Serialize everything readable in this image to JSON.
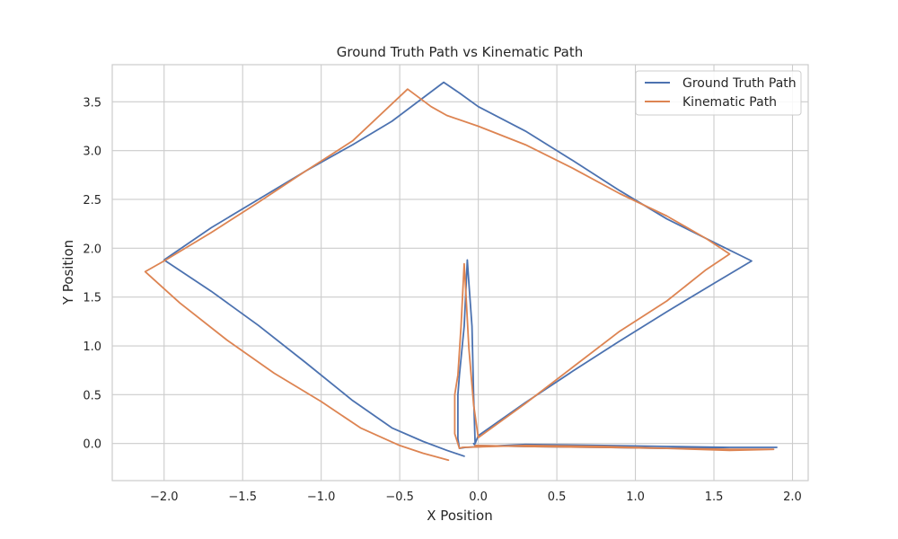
{
  "chart_data": {
    "type": "line",
    "title": "Ground Truth Path vs Kinematic Path",
    "xlabel": "X Position",
    "ylabel": "Y Position",
    "xlim": [
      -2.33,
      2.1
    ],
    "ylim": [
      -0.38,
      3.88
    ],
    "xticks": [
      -2.0,
      -1.5,
      -1.0,
      -0.5,
      0.0,
      0.5,
      1.0,
      1.5,
      2.0
    ],
    "xtick_labels": [
      "−2.0",
      "−1.5",
      "−1.0",
      "−0.5",
      "0.0",
      "0.5",
      "1.0",
      "1.5",
      "2.0"
    ],
    "yticks": [
      0.0,
      0.5,
      1.0,
      1.5,
      2.0,
      2.5,
      3.0,
      3.5
    ],
    "ytick_labels": [
      "0.0",
      "0.5",
      "1.0",
      "1.5",
      "2.0",
      "2.5",
      "3.0",
      "3.5"
    ],
    "grid": true,
    "legend_position": "top-right",
    "series": [
      {
        "name": "Ground Truth Path",
        "color": "#4c72b0",
        "x": [
          -0.09,
          -0.2,
          -0.35,
          -0.55,
          -0.8,
          -1.1,
          -1.4,
          -1.7,
          -2.0,
          -1.7,
          -1.4,
          -1.1,
          -0.8,
          -0.55,
          -0.22,
          -0.12,
          0.0,
          0.3,
          0.6,
          0.9,
          1.2,
          1.5,
          1.74,
          1.5,
          1.2,
          0.9,
          0.6,
          0.3,
          0.0,
          -0.02,
          -0.03,
          -0.04,
          -0.06,
          -0.07,
          -0.09,
          -0.12,
          -0.13,
          -0.13,
          -0.12,
          -0.08,
          0.3,
          0.8,
          1.2,
          1.6,
          1.9,
          1.6,
          1.2,
          0.8,
          0.3,
          -0.02,
          -0.03,
          -0.03
        ],
        "y": [
          -0.13,
          -0.07,
          0.02,
          0.16,
          0.44,
          0.83,
          1.21,
          1.56,
          1.88,
          2.21,
          2.5,
          2.79,
          3.06,
          3.3,
          3.7,
          3.59,
          3.45,
          3.2,
          2.9,
          2.59,
          2.3,
          2.06,
          1.87,
          1.64,
          1.35,
          1.05,
          0.74,
          0.42,
          0.08,
          0.0,
          0.5,
          1.2,
          1.65,
          1.88,
          1.2,
          0.7,
          0.5,
          0.05,
          -0.05,
          -0.04,
          -0.01,
          -0.02,
          -0.03,
          -0.04,
          -0.04,
          -0.04,
          -0.05,
          -0.04,
          -0.03,
          -0.02,
          0.0,
          0.0
        ]
      },
      {
        "name": "Kinematic Path",
        "color": "#dd8452",
        "x": [
          -0.19,
          -0.35,
          -0.5,
          -0.75,
          -1.0,
          -1.3,
          -1.6,
          -1.9,
          -2.12,
          -2.0,
          -1.7,
          -1.4,
          -1.1,
          -0.8,
          -0.45,
          -0.3,
          -0.2,
          0.0,
          0.3,
          0.6,
          0.9,
          1.2,
          1.45,
          1.6,
          1.45,
          1.2,
          0.9,
          0.6,
          0.3,
          0.0,
          -0.03,
          -0.06,
          -0.08,
          -0.09,
          -0.11,
          -0.13,
          -0.15,
          -0.15,
          -0.12,
          -0.1,
          0.3,
          0.8,
          1.2,
          1.6,
          1.88,
          1.6,
          1.2,
          0.8,
          0.3,
          -0.02,
          -0.02
        ],
        "y": [
          -0.17,
          -0.1,
          -0.02,
          0.16,
          0.43,
          0.72,
          1.06,
          1.44,
          1.76,
          1.87,
          2.16,
          2.47,
          2.79,
          3.1,
          3.63,
          3.45,
          3.36,
          3.25,
          3.06,
          2.82,
          2.56,
          2.33,
          2.1,
          1.94,
          1.78,
          1.46,
          1.15,
          0.78,
          0.41,
          0.06,
          0.4,
          0.98,
          1.58,
          1.84,
          1.2,
          0.7,
          0.5,
          0.1,
          -0.05,
          -0.04,
          -0.02,
          -0.03,
          -0.05,
          -0.07,
          -0.06,
          -0.06,
          -0.05,
          -0.04,
          -0.03,
          -0.02,
          -0.02
        ]
      }
    ]
  }
}
